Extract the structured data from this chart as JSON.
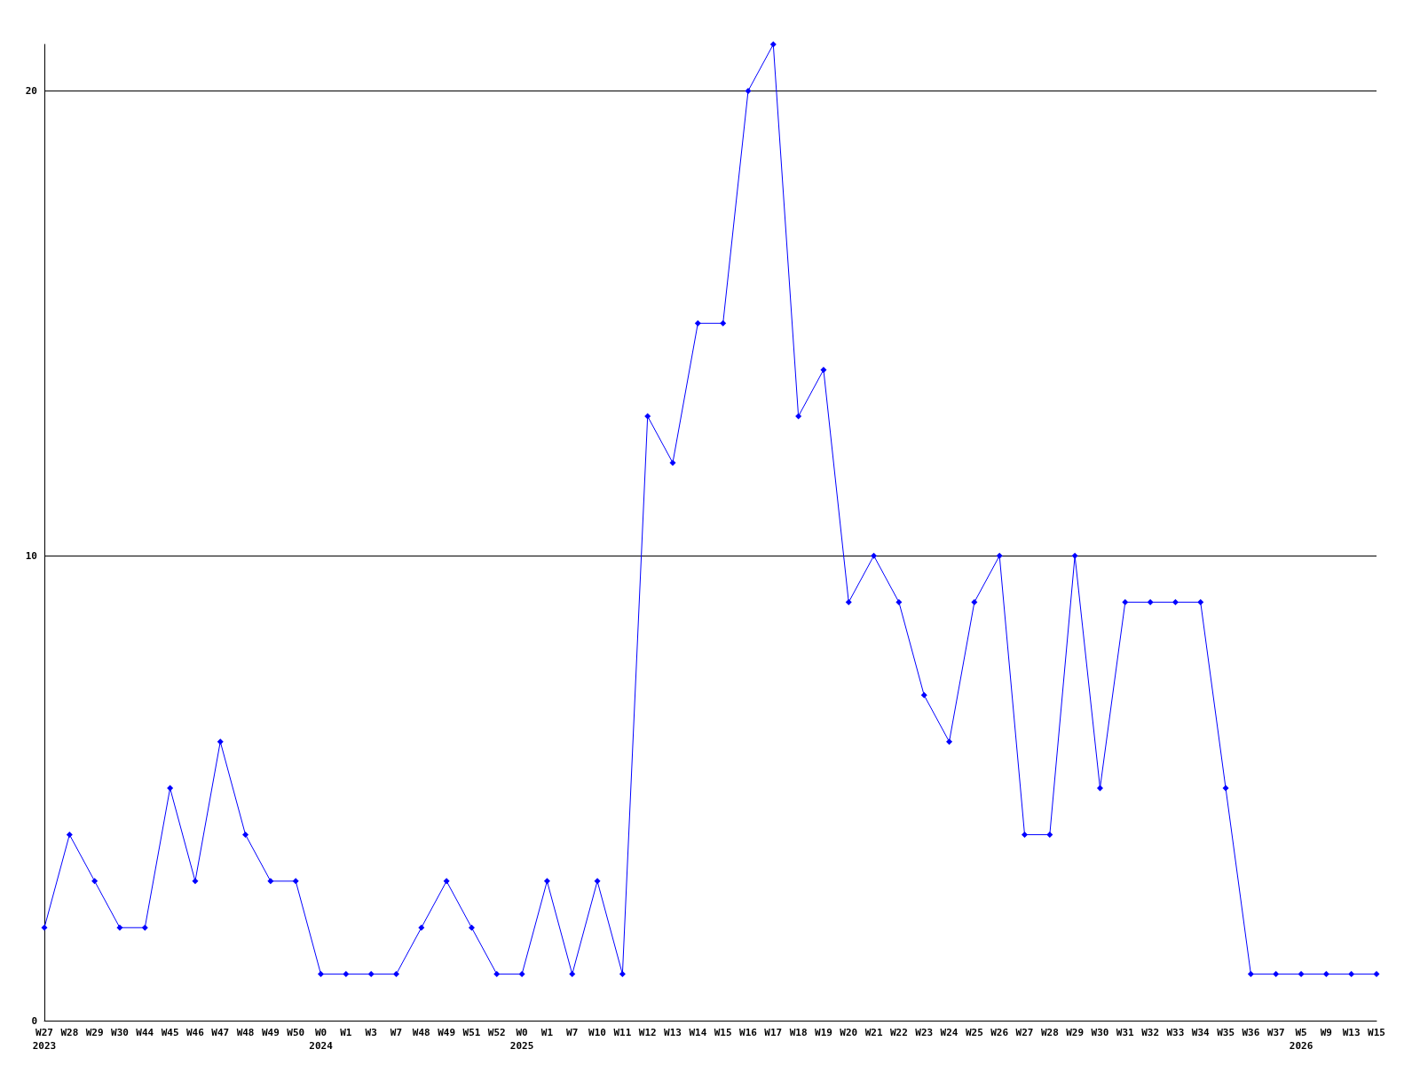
{
  "chart_data": {
    "type": "line",
    "categories": [
      "W27\n2023",
      "W28",
      "W29",
      "W30",
      "W44",
      "W45",
      "W46",
      "W47",
      "W48",
      "W49",
      "W50",
      "W0\n2024",
      "W1",
      "W3",
      "W7",
      "W48",
      "W49",
      "W51",
      "W52",
      "W0\n2025",
      "W1",
      "W7",
      "W10",
      "W11",
      "W12",
      "W13",
      "W14",
      "W15",
      "W16",
      "W17",
      "W18",
      "W19",
      "W20",
      "W21",
      "W22",
      "W23",
      "W24",
      "W25",
      "W26",
      "W27",
      "W28",
      "W29",
      "W30",
      "W31",
      "W32",
      "W33",
      "W34",
      "W35",
      "W36",
      "W37",
      "W5\n2026",
      "W9",
      "W13",
      "W15"
    ],
    "series": [
      {
        "color": "#0000ff",
        "values": [
          2,
          4,
          3,
          2,
          2,
          5,
          3,
          6,
          4,
          3,
          3,
          1,
          1,
          1,
          1,
          2,
          3,
          2,
          1,
          1,
          3,
          1,
          3,
          1,
          13,
          12,
          15,
          15,
          20,
          21,
          13,
          14,
          9,
          10,
          9,
          7,
          6,
          9,
          10,
          4,
          4,
          10,
          5,
          9,
          9,
          9,
          9,
          5,
          1,
          1,
          1,
          1,
          1,
          1
        ]
      }
    ],
    "ylim": [
      0,
      21
    ],
    "yticks": [
      0,
      10,
      20
    ],
    "grid": "y",
    "marker": "diamond"
  }
}
